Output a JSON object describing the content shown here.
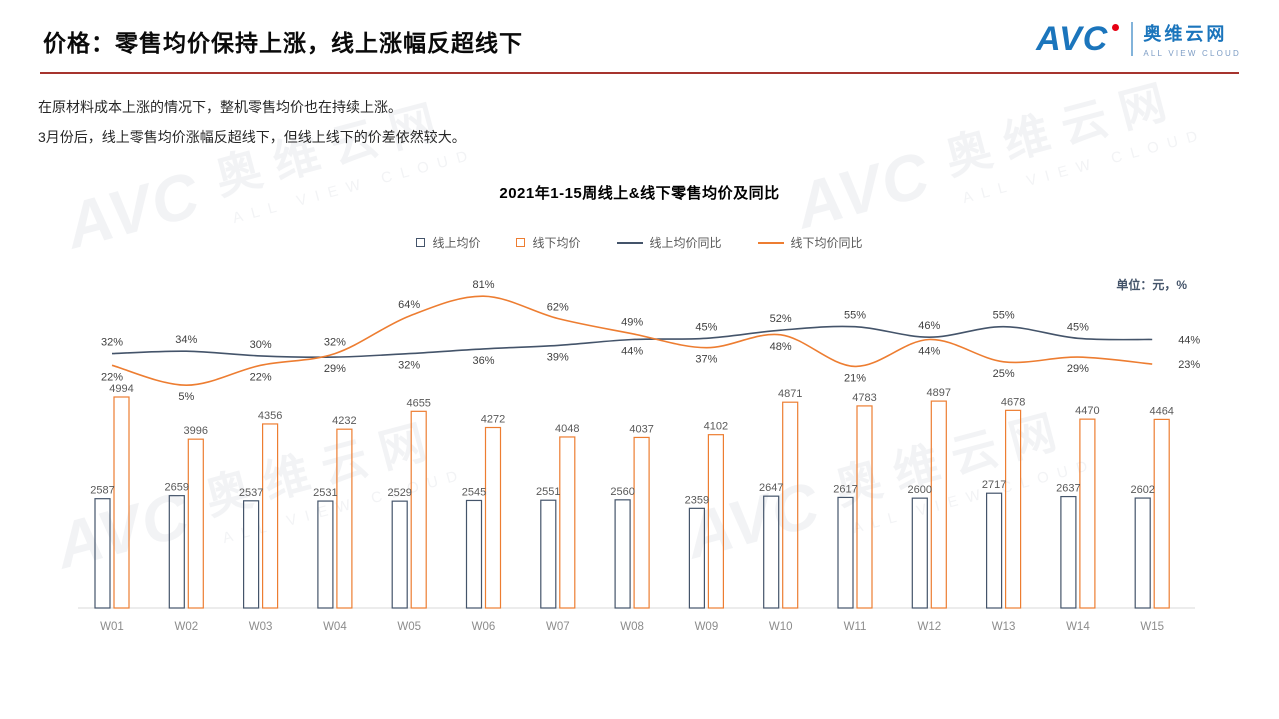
{
  "theme": {
    "accent-red": "#A6342E",
    "brand-blue": "#1B75BC",
    "dot-red": "#E60012",
    "navy": "#44546A",
    "orange": "#ED7D31"
  },
  "header": {
    "title": "价格：零售均价保持上涨，线上涨幅反超线下",
    "logo": {
      "brand": "AVC",
      "name_cn": "奥维云网",
      "name_en": "ALL VIEW CLOUD"
    }
  },
  "body": {
    "line1": "在原材料成本上涨的情况下，整机零售均价也在持续上涨。",
    "line2": "3月份后，线上零售均价涨幅反超线下，但线上线下的价差依然较大。"
  },
  "watermark": {
    "brand": "AVC",
    "name_cn": "奥维云网",
    "name_en": "ALL VIEW CLOUD"
  },
  "chart_data": {
    "type": "combo_bar_line",
    "title": "2021年1-15周线上&线下零售均价及同比",
    "unit_label": "单位：元，%",
    "categories": [
      "W01",
      "W02",
      "W03",
      "W04",
      "W05",
      "W06",
      "W07",
      "W08",
      "W09",
      "W10",
      "W11",
      "W12",
      "W13",
      "W14",
      "W15"
    ],
    "bar_series": [
      {
        "name": "线上均价",
        "color": "#44546A",
        "values": [
          2587,
          2659,
          2537,
          2531,
          2529,
          2545,
          2551,
          2560,
          2359,
          2647,
          2617,
          2600,
          2717,
          2637,
          2602
        ]
      },
      {
        "name": "线下均价",
        "color": "#ED7D31",
        "values": [
          4994,
          3996,
          4356,
          4232,
          4655,
          4272,
          4048,
          4037,
          4102,
          4871,
          4783,
          4897,
          4678,
          4470,
          4464
        ]
      }
    ],
    "line_series": [
      {
        "name": "线上均价同比",
        "color": "#44546A",
        "unit": "%",
        "values": [
          32,
          34,
          30,
          29,
          32,
          36,
          39,
          44,
          45,
          52,
          55,
          46,
          55,
          45,
          44
        ]
      },
      {
        "name": "线下均价同比",
        "color": "#ED7D31",
        "unit": "%",
        "values": [
          22,
          5,
          22,
          32,
          64,
          81,
          62,
          49,
          37,
          48,
          21,
          44,
          25,
          29,
          23
        ]
      }
    ],
    "layout": {
      "price_axis": [
        0,
        8000
      ],
      "pct_axis": [
        0,
        100
      ],
      "grid": "off",
      "legend_position": "top-center"
    }
  }
}
